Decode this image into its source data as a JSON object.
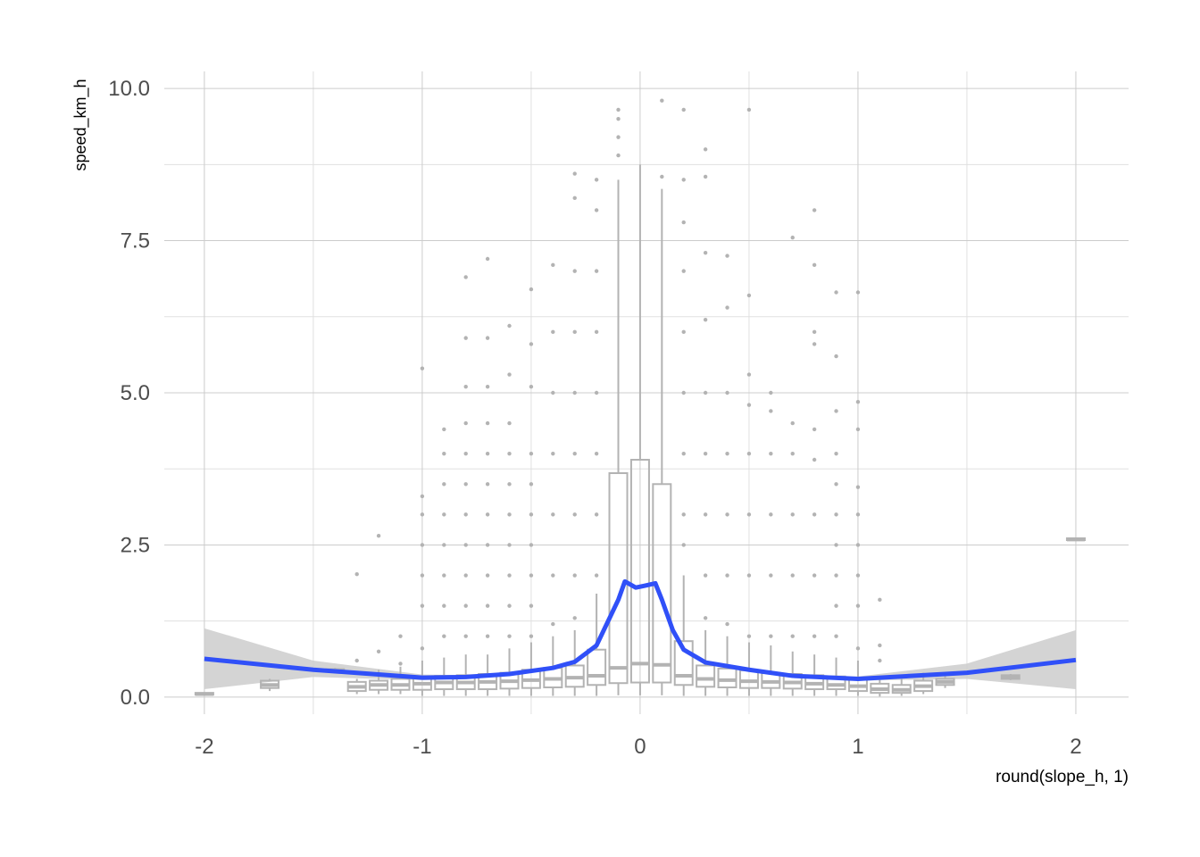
{
  "chart_data": {
    "type": "boxplot",
    "xlabel": "round(slope_h, 1)",
    "ylabel": "speed_km_h",
    "xlim": [
      -2.184,
      2.242
    ],
    "ylim": [
      -0.28,
      10.28
    ],
    "xticks": [
      -2,
      -1,
      0,
      1,
      2
    ],
    "xminor": [
      -1.5,
      -0.5,
      0.5,
      1.5
    ],
    "yticks": [
      {
        "value": 0,
        "label": "0.0"
      },
      {
        "value": 2.5,
        "label": "2.5"
      },
      {
        "value": 5,
        "label": "5.0"
      },
      {
        "value": 7.5,
        "label": "7.5"
      },
      {
        "value": 10,
        "label": "10.0"
      }
    ],
    "yminor": [
      1.25,
      3.75,
      6.25,
      8.75
    ],
    "grid": true,
    "box_color": "#b3b3b3",
    "boxes": [
      {
        "x": -2.0,
        "whisker_low": 0.03,
        "q1": 0.04,
        "median": 0.05,
        "q3": 0.07,
        "whisker_high": 0.08,
        "outliers": []
      },
      {
        "x": -1.7,
        "whisker_low": 0.1,
        "q1": 0.15,
        "median": 0.2,
        "q3": 0.27,
        "whisker_high": 0.3,
        "outliers": []
      },
      {
        "x": -1.4,
        "whisker_low": 0.4,
        "q1": 0.42,
        "median": 0.44,
        "q3": 0.46,
        "whisker_high": 0.48,
        "outliers": []
      },
      {
        "x": -1.3,
        "whisker_low": 0.05,
        "q1": 0.1,
        "median": 0.17,
        "q3": 0.25,
        "whisker_high": 0.3,
        "outliers": [
          0.6,
          2.02
        ]
      },
      {
        "x": -1.2,
        "whisker_low": 0.05,
        "q1": 0.12,
        "median": 0.2,
        "q3": 0.27,
        "whisker_high": 0.45,
        "outliers": [
          0.75,
          2.65
        ]
      },
      {
        "x": -1.1,
        "whisker_low": 0.05,
        "q1": 0.12,
        "median": 0.2,
        "q3": 0.3,
        "whisker_high": 0.5,
        "outliers": [
          0.55,
          1.0
        ]
      },
      {
        "x": -1.0,
        "whisker_low": 0.02,
        "q1": 0.12,
        "median": 0.22,
        "q3": 0.32,
        "whisker_high": 0.6,
        "outliers": [
          0.8,
          1.5,
          2.0,
          2.5,
          3.0,
          3.3,
          5.4
        ]
      },
      {
        "x": -0.9,
        "whisker_low": 0.02,
        "q1": 0.13,
        "median": 0.24,
        "q3": 0.35,
        "whisker_high": 0.65,
        "outliers": [
          1.0,
          1.5,
          2.0,
          2.5,
          3.0,
          3.5,
          4.0,
          4.4
        ]
      },
      {
        "x": -0.8,
        "whisker_low": 0.02,
        "q1": 0.13,
        "median": 0.24,
        "q3": 0.36,
        "whisker_high": 0.7,
        "outliers": [
          1.0,
          1.5,
          2.0,
          2.5,
          3.0,
          3.5,
          4.0,
          4.5,
          5.1,
          5.9,
          6.9
        ]
      },
      {
        "x": -0.7,
        "whisker_low": 0.02,
        "q1": 0.13,
        "median": 0.25,
        "q3": 0.38,
        "whisker_high": 0.7,
        "outliers": [
          1.0,
          1.5,
          2.0,
          2.5,
          3.0,
          3.5,
          4.0,
          4.5,
          5.1,
          5.9,
          7.2
        ]
      },
      {
        "x": -0.6,
        "whisker_low": 0.02,
        "q1": 0.14,
        "median": 0.26,
        "q3": 0.4,
        "whisker_high": 0.8,
        "outliers": [
          1.0,
          1.5,
          2.0,
          2.5,
          3.0,
          3.5,
          4.0,
          4.5,
          5.3,
          6.1
        ]
      },
      {
        "x": -0.5,
        "whisker_low": 0.02,
        "q1": 0.15,
        "median": 0.28,
        "q3": 0.45,
        "whisker_high": 0.9,
        "outliers": [
          1.0,
          1.5,
          2.0,
          2.5,
          3.0,
          3.5,
          4.0,
          5.1,
          5.8,
          6.7
        ]
      },
      {
        "x": -0.4,
        "whisker_low": 0.02,
        "q1": 0.16,
        "median": 0.3,
        "q3": 0.48,
        "whisker_high": 1.0,
        "outliers": [
          1.2,
          2.0,
          3.0,
          4.0,
          5.0,
          6.0,
          7.1
        ]
      },
      {
        "x": -0.3,
        "whisker_low": 0.02,
        "q1": 0.17,
        "median": 0.32,
        "q3": 0.52,
        "whisker_high": 1.1,
        "outliers": [
          1.3,
          2.0,
          3.0,
          4.0,
          5.0,
          6.0,
          7.0,
          8.2,
          8.6
        ]
      },
      {
        "x": -0.2,
        "whisker_low": 0.02,
        "q1": 0.2,
        "median": 0.35,
        "q3": 0.78,
        "whisker_high": 1.7,
        "outliers": [
          2.0,
          3.0,
          4.0,
          5.0,
          6.0,
          7.0,
          8.0,
          8.5
        ]
      },
      {
        "x": -0.1,
        "whisker_low": 0.03,
        "q1": 0.23,
        "median": 0.48,
        "q3": 3.68,
        "whisker_high": 8.5,
        "outliers": [
          8.9,
          9.2,
          9.5,
          9.65
        ]
      },
      {
        "x": 0.0,
        "whisker_low": 0.03,
        "q1": 0.24,
        "median": 0.55,
        "q3": 3.9,
        "whisker_high": 8.75,
        "outliers": []
      },
      {
        "x": 0.1,
        "whisker_low": 0.03,
        "q1": 0.24,
        "median": 0.53,
        "q3": 3.5,
        "whisker_high": 8.35,
        "outliers": [
          8.55,
          9.8
        ]
      },
      {
        "x": 0.2,
        "whisker_low": 0.02,
        "q1": 0.2,
        "median": 0.35,
        "q3": 0.92,
        "whisker_high": 2.0,
        "outliers": [
          2.5,
          3.0,
          4.0,
          5.0,
          6.0,
          7.0,
          7.8,
          8.5,
          9.65
        ]
      },
      {
        "x": 0.3,
        "whisker_low": 0.02,
        "q1": 0.17,
        "median": 0.3,
        "q3": 0.52,
        "whisker_high": 1.1,
        "outliers": [
          1.3,
          2.0,
          3.0,
          4.0,
          5.0,
          6.2,
          7.3,
          8.55,
          9.0
        ]
      },
      {
        "x": 0.4,
        "whisker_low": 0.02,
        "q1": 0.16,
        "median": 0.28,
        "q3": 0.47,
        "whisker_high": 1.0,
        "outliers": [
          1.2,
          2.0,
          3.0,
          4.0,
          5.0,
          6.4,
          7.25
        ]
      },
      {
        "x": 0.5,
        "whisker_low": 0.02,
        "q1": 0.15,
        "median": 0.26,
        "q3": 0.44,
        "whisker_high": 0.9,
        "outliers": [
          1.0,
          2.0,
          3.0,
          4.0,
          4.8,
          5.3,
          6.6,
          9.65
        ]
      },
      {
        "x": 0.6,
        "whisker_low": 0.02,
        "q1": 0.15,
        "median": 0.25,
        "q3": 0.4,
        "whisker_high": 0.85,
        "outliers": [
          1.0,
          2.0,
          3.0,
          4.0,
          4.7,
          5.0
        ]
      },
      {
        "x": 0.7,
        "whisker_low": 0.02,
        "q1": 0.14,
        "median": 0.24,
        "q3": 0.38,
        "whisker_high": 0.75,
        "outliers": [
          1.0,
          2.0,
          3.0,
          4.0,
          4.5,
          7.55
        ]
      },
      {
        "x": 0.8,
        "whisker_low": 0.02,
        "q1": 0.13,
        "median": 0.22,
        "q3": 0.36,
        "whisker_high": 0.7,
        "outliers": [
          1.0,
          2.0,
          3.0,
          3.9,
          4.4,
          5.8,
          6.0,
          7.1,
          8.0
        ]
      },
      {
        "x": 0.9,
        "whisker_low": 0.02,
        "q1": 0.13,
        "median": 0.2,
        "q3": 0.34,
        "whisker_high": 0.65,
        "outliers": [
          1.0,
          1.5,
          2.0,
          2.5,
          3.0,
          3.5,
          4.0,
          4.7,
          5.6,
          6.65
        ]
      },
      {
        "x": 1.0,
        "whisker_low": 0.02,
        "q1": 0.1,
        "median": 0.18,
        "q3": 0.3,
        "whisker_high": 0.6,
        "outliers": [
          0.8,
          1.5,
          2.0,
          2.5,
          3.0,
          3.45,
          4.4,
          4.85,
          6.65
        ]
      },
      {
        "x": 1.1,
        "whisker_low": 0.01,
        "q1": 0.07,
        "median": 0.13,
        "q3": 0.22,
        "whisker_high": 0.3,
        "outliers": [
          0.6,
          0.85,
          1.6
        ]
      },
      {
        "x": 1.2,
        "whisker_low": 0.02,
        "q1": 0.07,
        "median": 0.12,
        "q3": 0.2,
        "whisker_high": 0.3,
        "outliers": []
      },
      {
        "x": 1.3,
        "whisker_low": 0.05,
        "q1": 0.1,
        "median": 0.18,
        "q3": 0.27,
        "whisker_high": 0.4,
        "outliers": []
      },
      {
        "x": 1.4,
        "whisker_low": 0.15,
        "q1": 0.2,
        "median": 0.25,
        "q3": 0.3,
        "whisker_high": 0.35,
        "outliers": []
      },
      {
        "x": 1.7,
        "whisker_low": 0.28,
        "q1": 0.3,
        "median": 0.33,
        "q3": 0.36,
        "whisker_high": 0.38,
        "outliers": []
      },
      {
        "x": 2.0,
        "whisker_low": 2.57,
        "q1": 2.58,
        "median": 2.59,
        "q3": 2.61,
        "whisker_high": 2.62,
        "outliers": []
      }
    ],
    "smooth": {
      "color": "#3050f8",
      "ribbon_color": "#cccccc",
      "x": [
        -2.0,
        -1.5,
        -1.0,
        -0.8,
        -0.6,
        -0.4,
        -0.3,
        -0.2,
        -0.1,
        -0.07,
        -0.02,
        0.02,
        0.07,
        0.1,
        0.15,
        0.2,
        0.3,
        0.5,
        0.7,
        1.0,
        1.5,
        2.0
      ],
      "y": [
        0.63,
        0.45,
        0.32,
        0.33,
        0.38,
        0.48,
        0.58,
        0.85,
        1.6,
        1.9,
        1.8,
        1.83,
        1.87,
        1.6,
        1.1,
        0.78,
        0.57,
        0.45,
        0.35,
        0.3,
        0.4,
        0.61
      ],
      "lower": [
        0.13,
        0.33,
        0.28,
        0.3,
        0.35,
        0.45,
        0.55,
        0.82,
        1.57,
        1.87,
        1.77,
        1.8,
        1.84,
        1.57,
        1.07,
        0.75,
        0.54,
        0.42,
        0.32,
        0.27,
        0.3,
        0.13
      ],
      "upper": [
        1.13,
        0.6,
        0.37,
        0.36,
        0.41,
        0.51,
        0.61,
        0.88,
        1.63,
        1.93,
        1.83,
        1.86,
        1.9,
        1.63,
        1.13,
        0.81,
        0.6,
        0.48,
        0.38,
        0.34,
        0.55,
        1.1
      ]
    }
  }
}
